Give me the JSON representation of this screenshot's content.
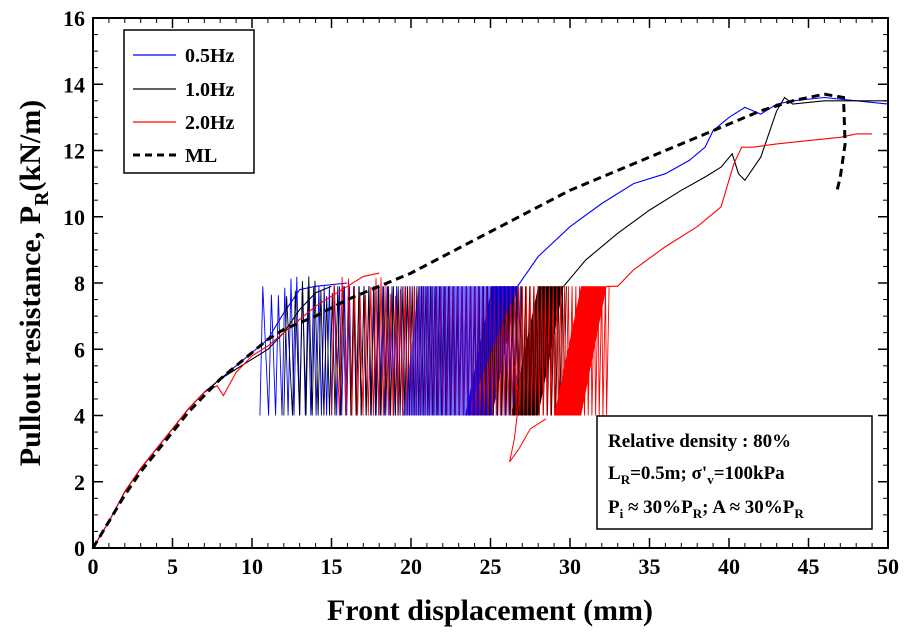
{
  "chart_data": {
    "type": "line",
    "xlabel": "Front displacement (mm)",
    "ylabel_main": "Pullout resistance, P",
    "ylabel_sub": "R",
    "ylabel_unit": "(kN/m)",
    "xlim": [
      0,
      50
    ],
    "ylim": [
      0,
      16
    ],
    "x_ticks": [
      0,
      5,
      10,
      15,
      20,
      25,
      30,
      35,
      40,
      45,
      50
    ],
    "y_ticks": [
      0,
      2,
      4,
      6,
      8,
      10,
      12,
      14,
      16
    ],
    "grid": false,
    "legend_position": "top-left",
    "series": [
      {
        "name": "0.5Hz",
        "color": "#0000ff",
        "style": "solid",
        "monotonic": [
          [
            0,
            0
          ],
          [
            1,
            0.8
          ],
          [
            2,
            1.7
          ],
          [
            3,
            2.4
          ],
          [
            4,
            3.0
          ],
          [
            5,
            3.6
          ],
          [
            6,
            4.2
          ],
          [
            7,
            4.7
          ],
          [
            8,
            5.1
          ],
          [
            9,
            5.5
          ],
          [
            10,
            5.9
          ],
          [
            11,
            6.3
          ],
          [
            12,
            7.1
          ],
          [
            13,
            7.8
          ],
          [
            14,
            7.9
          ],
          [
            16,
            8.0
          ]
        ],
        "cyclic": {
          "x_start": 10.5,
          "x_end": 26.7,
          "lower": 4.0,
          "upper": 7.9,
          "cycles": 55,
          "density_start": 0.12
        },
        "post_cyclic": [
          [
            26.7,
            7.9
          ],
          [
            28,
            8.8
          ],
          [
            30,
            9.7
          ],
          [
            32,
            10.4
          ],
          [
            34,
            11.0
          ],
          [
            36,
            11.3
          ],
          [
            37.5,
            11.7
          ],
          [
            38.5,
            12.1
          ],
          [
            39,
            12.6
          ],
          [
            40,
            13.0
          ],
          [
            41,
            13.3
          ],
          [
            42,
            13.1
          ],
          [
            43,
            13.4
          ],
          [
            44,
            13.5
          ],
          [
            46,
            13.6
          ],
          [
            48,
            13.5
          ],
          [
            50,
            13.4
          ]
        ]
      },
      {
        "name": "1.0Hz",
        "color": "#000000",
        "style": "solid",
        "monotonic": [
          [
            0,
            0
          ],
          [
            1,
            0.8
          ],
          [
            2,
            1.7
          ],
          [
            3,
            2.4
          ],
          [
            4,
            3.0
          ],
          [
            5,
            3.6
          ],
          [
            6,
            4.2
          ],
          [
            7,
            4.7
          ],
          [
            8,
            5.1
          ],
          [
            9,
            5.4
          ],
          [
            10,
            5.7
          ],
          [
            11,
            6.0
          ],
          [
            12,
            6.5
          ],
          [
            13,
            7.2
          ],
          [
            14,
            7.7
          ],
          [
            15,
            7.9
          ]
        ],
        "cyclic": {
          "x_start": 12.0,
          "x_end": 29.6,
          "lower": 4.0,
          "upper": 7.9,
          "cycles": 60,
          "density_start": 0.12
        },
        "post_cyclic": [
          [
            29.6,
            7.9
          ],
          [
            31,
            8.7
          ],
          [
            33,
            9.5
          ],
          [
            35,
            10.2
          ],
          [
            37,
            10.8
          ],
          [
            38.5,
            11.2
          ],
          [
            39.5,
            11.5
          ],
          [
            40.2,
            11.9
          ],
          [
            40.6,
            11.3
          ],
          [
            41,
            11.1
          ],
          [
            42,
            11.8
          ],
          [
            43,
            13.2
          ],
          [
            43.5,
            13.6
          ],
          [
            44,
            13.4
          ],
          [
            46,
            13.5
          ],
          [
            48,
            13.5
          ],
          [
            50,
            13.5
          ]
        ]
      },
      {
        "name": "2.0Hz",
        "color": "#ff0000",
        "style": "solid",
        "monotonic": [
          [
            0,
            0
          ],
          [
            1,
            0.8
          ],
          [
            2,
            1.7
          ],
          [
            3,
            2.4
          ],
          [
            4,
            3.0
          ],
          [
            5,
            3.6
          ],
          [
            6,
            4.2
          ],
          [
            7,
            4.7
          ],
          [
            7.8,
            4.9
          ],
          [
            8.2,
            4.6
          ],
          [
            9,
            5.3
          ],
          [
            10,
            5.8
          ],
          [
            11,
            6.1
          ],
          [
            12,
            6.5
          ],
          [
            13,
            6.9
          ],
          [
            14,
            7.3
          ],
          [
            16,
            7.9
          ],
          [
            17,
            8.2
          ],
          [
            18,
            8.3
          ]
        ],
        "cyclic": {
          "x_start": 15.0,
          "x_end": 32.3,
          "lower": 4.0,
          "upper": 7.9,
          "cycles": 65,
          "density_start": 0.2
        },
        "post_cyclic": [
          [
            32.3,
            7.9
          ],
          [
            33,
            7.9
          ],
          [
            34,
            8.4
          ],
          [
            36,
            9.1
          ],
          [
            38,
            9.7
          ],
          [
            39.5,
            10.3
          ],
          [
            40.3,
            11.6
          ],
          [
            40.8,
            12.1
          ],
          [
            41.5,
            12.1
          ],
          [
            43,
            12.2
          ],
          [
            45,
            12.3
          ],
          [
            47,
            12.4
          ],
          [
            48,
            12.5
          ],
          [
            49,
            12.5
          ]
        ]
      },
      {
        "name": "ML",
        "color": "#000000",
        "style": "dashed",
        "points": [
          [
            0,
            0
          ],
          [
            1,
            0.8
          ],
          [
            2,
            1.6
          ],
          [
            3,
            2.3
          ],
          [
            4,
            2.9
          ],
          [
            5,
            3.5
          ],
          [
            6,
            4.1
          ],
          [
            7,
            4.6
          ],
          [
            8,
            5.1
          ],
          [
            9,
            5.5
          ],
          [
            10,
            5.9
          ],
          [
            11,
            6.3
          ],
          [
            12,
            6.6
          ],
          [
            14,
            7.0
          ],
          [
            16,
            7.5
          ],
          [
            18,
            7.9
          ],
          [
            20,
            8.3
          ],
          [
            22,
            8.8
          ],
          [
            24,
            9.3
          ],
          [
            26,
            9.8
          ],
          [
            28,
            10.3
          ],
          [
            30,
            10.8
          ],
          [
            32,
            11.2
          ],
          [
            34,
            11.6
          ],
          [
            36,
            12.0
          ],
          [
            38,
            12.4
          ],
          [
            40,
            12.8
          ],
          [
            42,
            13.2
          ],
          [
            44,
            13.5
          ],
          [
            46,
            13.7
          ],
          [
            47.2,
            13.6
          ],
          [
            47.3,
            12.2
          ],
          [
            47.0,
            11.2
          ],
          [
            46.8,
            10.8
          ]
        ]
      }
    ],
    "unloading_dips": [
      {
        "color": "#ff0000",
        "points": [
          [
            26.5,
            5.5
          ],
          [
            26.8,
            4.5
          ],
          [
            26.5,
            3.3
          ],
          [
            26.2,
            2.6
          ],
          [
            26.8,
            3.0
          ],
          [
            27.5,
            3.6
          ],
          [
            28.5,
            3.9
          ]
        ]
      }
    ],
    "legend": [
      "0.5Hz",
      "1.0Hz",
      "2.0Hz",
      "ML"
    ],
    "annotation": {
      "line1": "Relative density : 80%",
      "line2": {
        "a": "L",
        "a_sub": "R",
        "b": "=0.5m; σ'",
        "b_sub": "v",
        "c": "=100kPa"
      },
      "line3": {
        "a": "P",
        "a_sub": "i",
        "b": " ≈ 30%P",
        "b_sub": "R",
        "c": "; A ≈ 30%P",
        "c_sub": "R"
      }
    }
  }
}
